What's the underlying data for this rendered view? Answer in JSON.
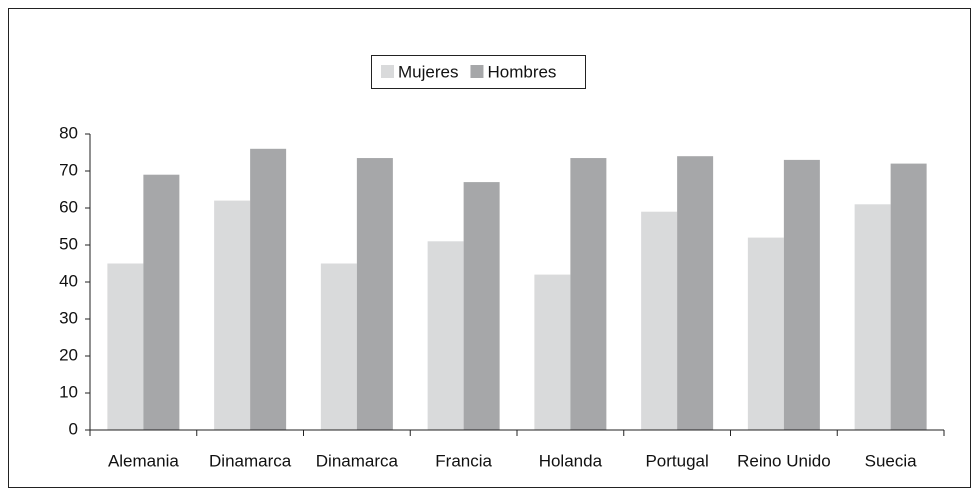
{
  "chart_data": {
    "type": "bar",
    "categories": [
      "Alemania",
      "Dinamarca",
      "Dinamarca",
      "Francia",
      "Holanda",
      "Portugal",
      "Reino Unido",
      "Suecia"
    ],
    "series": [
      {
        "name": "Mujeres",
        "color": "#d9dadb",
        "values": [
          45,
          62,
          45,
          51,
          42,
          59,
          52,
          61
        ]
      },
      {
        "name": "Hombres",
        "color": "#a6a7a9",
        "values": [
          69,
          76,
          73.5,
          67,
          73.5,
          74,
          73,
          72
        ]
      }
    ],
    "ylim": [
      0,
      80
    ],
    "yticks": [
      0,
      10,
      20,
      30,
      40,
      50,
      60,
      70,
      80
    ],
    "legend": "top"
  }
}
